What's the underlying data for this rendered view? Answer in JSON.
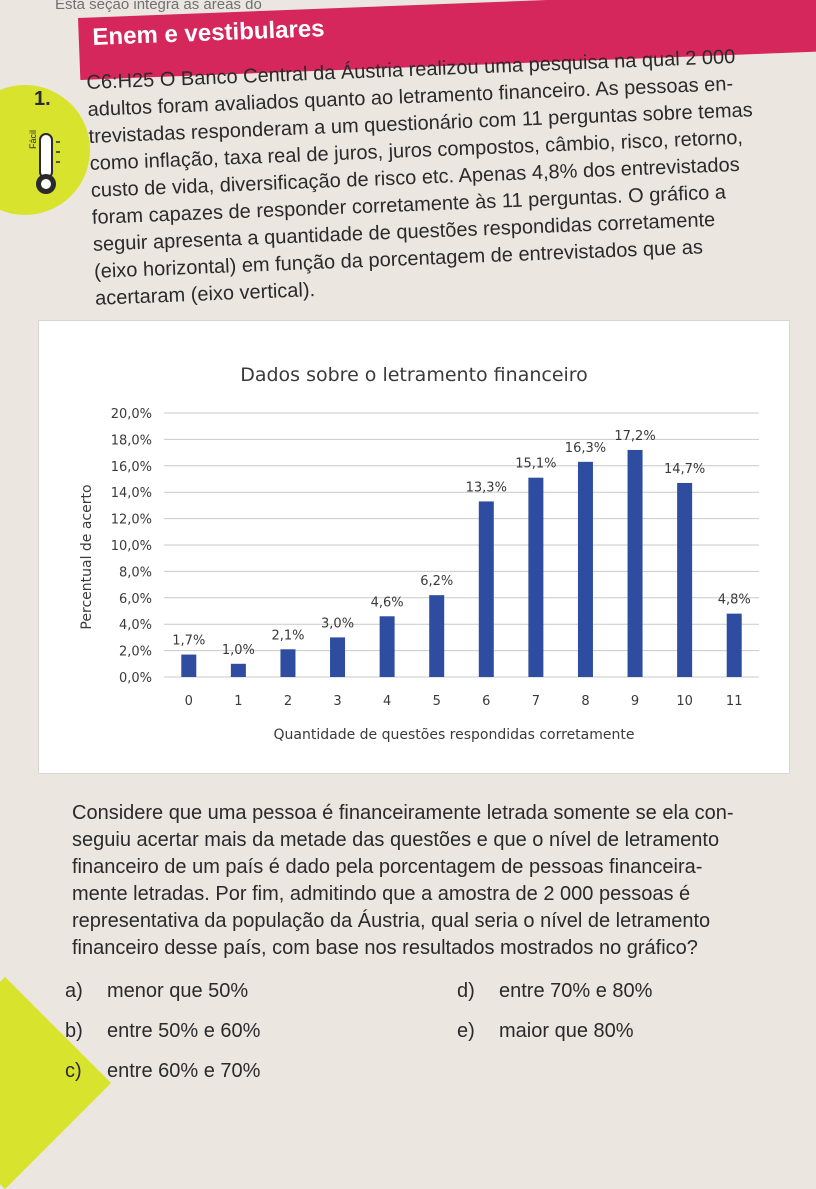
{
  "header": {
    "top_note": "Esta seção integra as áreas do",
    "banner_title": "Enem e vestibulares"
  },
  "question": {
    "number": "1.",
    "difficulty_label": "Fácil",
    "intro_lines": [
      "C6:H25 O Banco Central da Áustria realizou uma pesquisa na qual 2 000",
      "adultos foram avaliados quanto ao letramento financeiro. As pessoas en-",
      "trevistadas responderam a um questionário com 11 perguntas sobre temas",
      "como inflação, taxa real de juros, juros compostos, câmbio, risco, retorno,",
      "custo de vida, diversificação de risco etc. Apenas 4,8% dos entrevistados",
      "foram capazes de responder corretamente às 11 perguntas. O gráfico a",
      "seguir apresenta a quantidade de questões respondidas corretamente",
      "(eixo horizontal) em função da porcentagem de entrevistados que as",
      "acertaram (eixo vertical)."
    ],
    "after_lines": [
      "Considere que uma pessoa é financeiramente letrada somente se ela con-",
      "seguiu acertar mais da metade das questões e que o nível de letramento",
      "financeiro de um país é dado pela porcentagem de pessoas financeira-",
      "mente letradas. Por fim, admitindo que a amostra de 2 000 pessoas é",
      "representativa da população da Áustria, qual seria o nível de letramento",
      "financeiro desse país, com base nos resultados mostrados no gráfico?"
    ],
    "options": [
      {
        "letter": "a)",
        "text": "menor que 50%"
      },
      {
        "letter": "b)",
        "text": "entre 50% e 60%"
      },
      {
        "letter": "c)",
        "text": "entre 60% e 70%"
      },
      {
        "letter": "d)",
        "text": "entre 70% e 80%"
      },
      {
        "letter": "e)",
        "text": "maior que 80%"
      }
    ]
  },
  "chart_data": {
    "type": "bar",
    "title": "Dados sobre o letramento financeiro",
    "xlabel": "Quantidade de questões respondidas corretamente",
    "ylabel": "Percentual de acerto",
    "categories": [
      "0",
      "1",
      "2",
      "3",
      "4",
      "5",
      "6",
      "7",
      "8",
      "9",
      "10",
      "11"
    ],
    "values": [
      1.7,
      1.0,
      2.1,
      3.0,
      4.6,
      6.2,
      13.3,
      15.1,
      16.3,
      17.2,
      14.7,
      4.8
    ],
    "data_labels": [
      "1,7%",
      "1,0%",
      "2,1%",
      "3,0%",
      "4,6%",
      "6,2%",
      "13,3%",
      "15,1%",
      "16,3%",
      "17,2%",
      "14,7%",
      "4,8%"
    ],
    "y_ticks": [
      "0,0%",
      "2,0%",
      "4,0%",
      "6,0%",
      "8,0%",
      "10,0%",
      "12,0%",
      "14,0%",
      "16,0%",
      "18,0%",
      "20,0%"
    ],
    "ylim": [
      0,
      20
    ],
    "grid": true,
    "bar_color": "#2f4da0"
  }
}
